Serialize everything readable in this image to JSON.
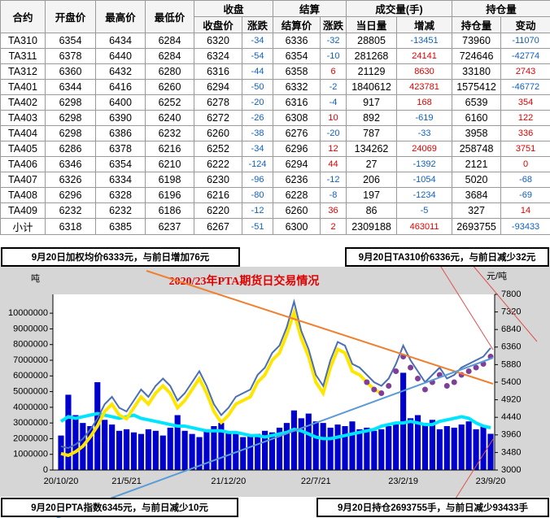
{
  "table": {
    "headers_top": [
      "合约",
      "开盘价",
      "最高价",
      "最低价",
      "收盘",
      "结算",
      "成交量(手)",
      "持仓量"
    ],
    "headers_sub": [
      "收盘价",
      "涨跌",
      "结算价",
      "涨跌",
      "当日量",
      "增减",
      "持仓量",
      "变动"
    ],
    "rows": [
      [
        "TA310",
        6354,
        6434,
        6284,
        6320,
        -34,
        6336,
        -32,
        28805,
        -13451,
        73960,
        -11070
      ],
      [
        "TA311",
        6378,
        6440,
        6284,
        6324,
        -54,
        6354,
        -10,
        281268,
        24141,
        724646,
        -42774
      ],
      [
        "TA312",
        6360,
        6432,
        6280,
        6316,
        -44,
        6358,
        6,
        21129,
        8630,
        33180,
        2743
      ],
      [
        "TA401",
        6344,
        6416,
        6260,
        6294,
        -50,
        6332,
        -2,
        1840612,
        423781,
        1575412,
        -46772
      ],
      [
        "TA402",
        6298,
        6400,
        6252,
        6278,
        -20,
        6316,
        -4,
        917,
        168,
        6539,
        354
      ],
      [
        "TA403",
        6298,
        6390,
        6240,
        6272,
        -26,
        6308,
        10,
        892,
        -619,
        6160,
        122
      ],
      [
        "TA404",
        6298,
        6386,
        6232,
        6260,
        -38,
        6276,
        -20,
        787,
        -33,
        3958,
        336
      ],
      [
        "TA405",
        6286,
        6378,
        6216,
        6252,
        -34,
        6296,
        12,
        134262,
        24069,
        258748,
        3751
      ],
      [
        "TA406",
        6346,
        6354,
        6210,
        6222,
        -124,
        6294,
        44,
        27,
        -1392,
        2121,
        0
      ],
      [
        "TA407",
        6326,
        6334,
        6198,
        6230,
        -96,
        6236,
        -12,
        206,
        -1054,
        5020,
        -68
      ],
      [
        "TA408",
        6296,
        6328,
        6196,
        6216,
        -80,
        6228,
        -8,
        197,
        -1234,
        3684,
        -69
      ],
      [
        "TA409",
        6232,
        6232,
        6186,
        6220,
        -12,
        6260,
        36,
        86,
        -5,
        327,
        14
      ],
      [
        "小计",
        6318,
        6385,
        6237,
        6267,
        -51,
        6300,
        2,
        2309188,
        463011,
        2693755,
        -93433
      ]
    ]
  },
  "chart_data": {
    "type": "combo",
    "title": "2020/23年PTA期货日交易情况",
    "y_label": "吨",
    "y2_label": "元/吨",
    "annotations": [
      "9月20日加权均价6333元，与前日增加76元",
      "9月20日TA310价6336元，与前日减少32元",
      "9月20日PTA指数6345元，与前日减少10元",
      "9月20日持仓2693755手，与前日减少93433手"
    ],
    "categories": [
      "20/10/20",
      null,
      null,
      null,
      null,
      null,
      null,
      null,
      null,
      "21/5/21",
      null,
      null,
      null,
      null,
      null,
      null,
      null,
      null,
      null,
      null,
      null,
      null,
      null,
      "21/12/20",
      null,
      null,
      null,
      null,
      null,
      null,
      null,
      null,
      null,
      null,
      null,
      "22/7/21",
      null,
      null,
      null,
      null,
      null,
      null,
      null,
      null,
      null,
      null,
      null,
      "23/2/19",
      null,
      null,
      null,
      null,
      null,
      null,
      null,
      null,
      null,
      null,
      null,
      "23/9/20"
    ],
    "ylim": [
      0,
      11200000
    ],
    "yticks": [
      0,
      1000000,
      2000000,
      3000000,
      4000000,
      5000000,
      6000000,
      7000000,
      8000000,
      9000000,
      10000000
    ],
    "y2lim": [
      3000,
      7800
    ],
    "y2ticks": [
      3000,
      3480,
      3960,
      4440,
      4920,
      5400,
      5880,
      6360,
      6840,
      7320,
      7800
    ],
    "series": [
      {
        "kind": "bar",
        "color": "#0000cc",
        "values": [
          2200000,
          4800000,
          3500000,
          3000000,
          2800000,
          5600000,
          3200000,
          2900000,
          2500000,
          2600000,
          2400000,
          2300000,
          2600000,
          2500000,
          2200000,
          2700000,
          3500000,
          2500000,
          2300000,
          2100000,
          2600000,
          2800000,
          3000000,
          2400000,
          2300000,
          2100000,
          2200000,
          2300000,
          2500000,
          2400000,
          2700000,
          3000000,
          3800000,
          3300000,
          3600000,
          3100000,
          3000000,
          2700000,
          2900000,
          2800000,
          3100000,
          2600000,
          2700000,
          2500000,
          2600000,
          2800000,
          3000000,
          6200000,
          3300000,
          3500000,
          3000000,
          3200000,
          2600000,
          2800000,
          2700000,
          2900000,
          3100000,
          2600000,
          2800000,
          2309188
        ]
      },
      {
        "kind": "line",
        "color": "#00e5ff",
        "values": [
          3100000,
          3400000,
          3300000,
          3400000,
          3500000,
          3600000,
          3500000,
          3400000,
          3300000,
          3400000,
          3500000,
          3300000,
          3200000,
          3100000,
          3000000,
          2900000,
          2800000,
          2800000,
          2700000,
          2600000,
          2500000,
          2500000,
          2500000,
          2400000,
          2400000,
          2300000,
          2200000,
          2200000,
          2100000,
          2200000,
          2300000,
          2400000,
          2600000,
          2500000,
          2300000,
          2100000,
          2000000,
          2000000,
          2100000,
          2200000,
          2300000,
          2400000,
          2500000,
          2600000,
          2800000,
          2900000,
          3000000,
          3000000,
          3100000,
          3000000,
          2900000,
          2900000,
          3100000,
          3200000,
          3300000,
          3400000,
          3300000,
          3000000,
          2800000,
          2693755
        ]
      },
      {
        "kind": "line",
        "axis": "y2",
        "color": "#ffe600",
        "values": [
          3450,
          3400,
          3500,
          3650,
          3900,
          4200,
          4600,
          4800,
          4500,
          4400,
          4700,
          5000,
          4800,
          5100,
          5300,
          5100,
          4700,
          4900,
          5200,
          5500,
          5100,
          4600,
          4300,
          4500,
          4800,
          4900,
          5000,
          5400,
          5600,
          6000,
          6200,
          6700,
          7300,
          6600,
          6100,
          5400,
          5100,
          5800,
          6300,
          6200,
          5700,
          5600,
          5400,
          5200,
          5100,
          null,
          null,
          null,
          null,
          null,
          null,
          null,
          null,
          null,
          null,
          null,
          null,
          null,
          null,
          null
        ]
      },
      {
        "kind": "line",
        "axis": "y2",
        "color": "#4a6fb5",
        "values": [
          3650,
          3600,
          3700,
          3850,
          4100,
          4400,
          4800,
          5000,
          4700,
          4600,
          4900,
          5200,
          5000,
          5300,
          5500,
          5300,
          4900,
          5100,
          5400,
          5700,
          5300,
          4800,
          4500,
          4700,
          5000,
          5100,
          5200,
          5600,
          5800,
          6200,
          6400,
          6900,
          7600,
          6800,
          6300,
          5600,
          5300,
          6000,
          6500,
          6400,
          5900,
          5800,
          5600,
          5400,
          5300,
          5500,
          5900,
          6400,
          6000,
          5700,
          5400,
          5600,
          5800,
          5500,
          5600,
          5800,
          5900,
          6000,
          6100,
          6336
        ]
      },
      {
        "kind": "dots",
        "axis": "y2",
        "color": "#7f3f98",
        "values": [
          null,
          null,
          null,
          null,
          null,
          null,
          null,
          null,
          null,
          null,
          null,
          null,
          null,
          null,
          null,
          null,
          null,
          null,
          null,
          null,
          null,
          null,
          null,
          null,
          null,
          null,
          null,
          null,
          null,
          null,
          null,
          null,
          null,
          null,
          null,
          null,
          null,
          null,
          null,
          null,
          null,
          null,
          5400,
          5200,
          5100,
          5300,
          5700,
          6100,
          5800,
          5500,
          5200,
          5400,
          5600,
          5300,
          5400,
          5600,
          5700,
          5800,
          5900,
          6100
        ]
      }
    ]
  }
}
